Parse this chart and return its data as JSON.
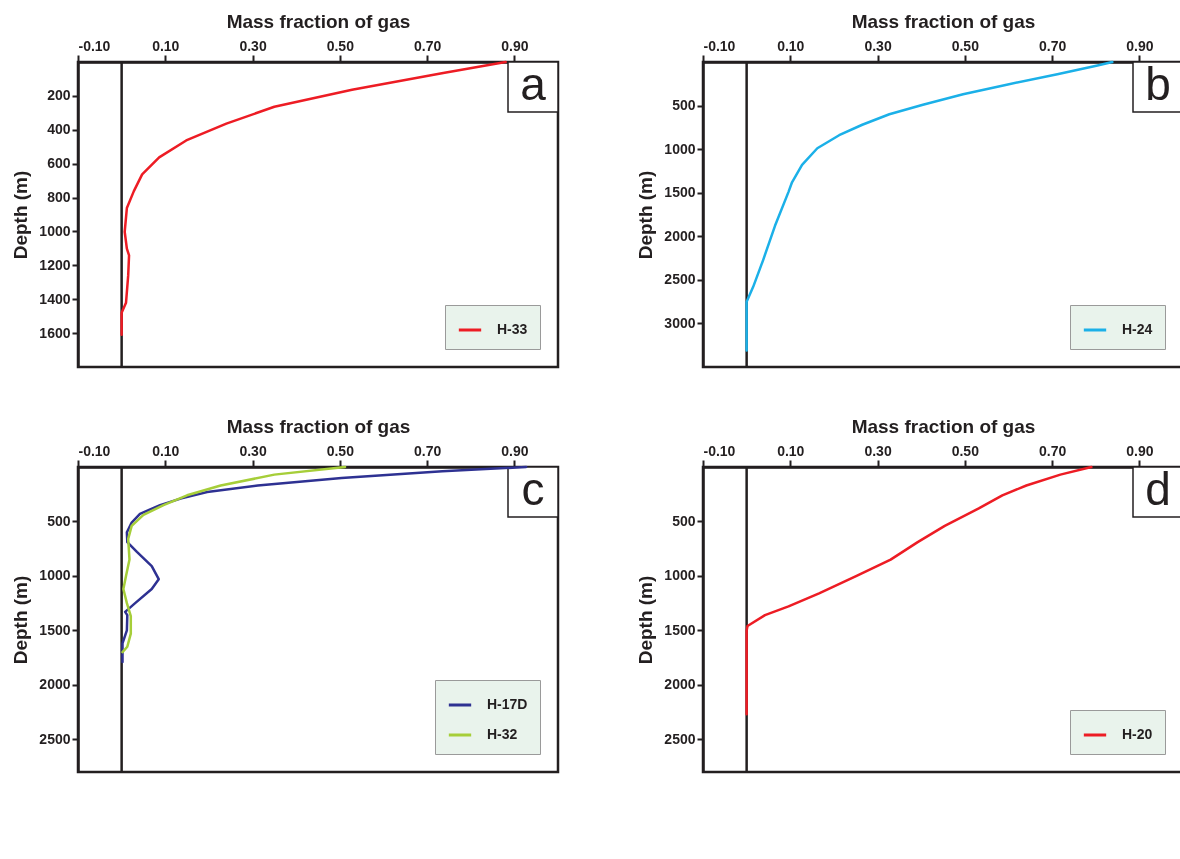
{
  "chart_data": [
    {
      "type": "line",
      "xlabel": "Mass fraction of gas",
      "ylabel": "Depth (m)",
      "annotations": [
        "a"
      ],
      "legend": "bottom right",
      "xlim": [
        -0.1,
        1.0
      ],
      "xticks": [
        {
          "value": -0.1,
          "label": "-0.10"
        },
        {
          "value": 0.1,
          "label": "0.10"
        },
        {
          "value": 0.3,
          "label": "0.30"
        },
        {
          "value": 0.5,
          "label": "0.50"
        },
        {
          "value": 0.7,
          "label": "0.70"
        },
        {
          "value": 0.9,
          "label": "0.90"
        }
      ],
      "ylim": [
        1800,
        0
      ],
      "yticks": [
        200,
        400,
        600,
        800,
        1000,
        1200,
        1400,
        1600
      ],
      "ref_lines": [
        {
          "axis": "x",
          "value": 0,
          "color": "#231f20"
        }
      ],
      "series": [
        {
          "name": "H-33",
          "color": "#ed1c24",
          "x": [
            0.88,
            0.737,
            0.528,
            0.35,
            0.24,
            0.148,
            0.086,
            0.047,
            0.028,
            0.012,
            0.007,
            0.012,
            0.017,
            0.015,
            0.01,
            0,
            0
          ],
          "values": [
            0,
            65,
            164,
            264,
            364,
            463,
            563,
            663,
            762,
            862,
            1002,
            1101,
            1141,
            1261,
            1421,
            1480,
            1610
          ]
        }
      ]
    },
    {
      "type": "line",
      "xlabel": "Mass fraction of gas",
      "ylabel": "Depth (m)",
      "annotations": [
        "b"
      ],
      "legend": "bottom right",
      "xlim": [
        -0.1,
        1.0
      ],
      "xticks": [
        {
          "value": -0.1,
          "label": "-0.10"
        },
        {
          "value": 0.1,
          "label": "0.10"
        },
        {
          "value": 0.3,
          "label": "0.30"
        },
        {
          "value": 0.5,
          "label": "0.50"
        },
        {
          "value": 0.7,
          "label": "0.70"
        },
        {
          "value": 0.9,
          "label": "0.90"
        }
      ],
      "ylim": [
        3500,
        0
      ],
      "yticks": [
        500,
        1000,
        1500,
        2000,
        2500,
        3000
      ],
      "ref_lines": [
        {
          "axis": "x",
          "value": 0,
          "color": "#231f20"
        }
      ],
      "series": [
        {
          "name": "H-24",
          "color": "#1bb0e8",
          "x": [
            0.838,
            0.804,
            0.712,
            0.596,
            0.496,
            0.404,
            0.327,
            0.265,
            0.212,
            0.162,
            0.127,
            0.104,
            0.096,
            0.065,
            0.038,
            0.015,
            0,
            0
          ],
          "values": [
            0,
            40,
            140,
            260,
            370,
            490,
            600,
            720,
            840,
            990,
            1180,
            1380,
            1490,
            1880,
            2270,
            2580,
            2750,
            3310
          ]
        }
      ]
    },
    {
      "type": "line",
      "xlabel": "Mass fraction of gas",
      "ylabel": "Depth (m)",
      "annotations": [
        "c"
      ],
      "legend": "bottom right",
      "xlim": [
        -0.1,
        1.0
      ],
      "xticks": [
        {
          "value": -0.1,
          "label": "-0.10"
        },
        {
          "value": 0.1,
          "label": "0.10"
        },
        {
          "value": 0.3,
          "label": "0.30"
        },
        {
          "value": 0.5,
          "label": "0.50"
        },
        {
          "value": 0.7,
          "label": "0.70"
        },
        {
          "value": 0.9,
          "label": "0.90"
        }
      ],
      "ylim": [
        2800,
        0
      ],
      "yticks": [
        500,
        1000,
        1500,
        2000,
        2500
      ],
      "ref_lines": [
        {
          "axis": "x",
          "value": 0,
          "color": "#231f20"
        }
      ],
      "series": [
        {
          "name": "H-17D",
          "color": "#2e3192",
          "x": [
            0.927,
            0.735,
            0.504,
            0.312,
            0.196,
            0.135,
            0.088,
            0.042,
            0.023,
            0.012,
            0.013,
            0.035,
            0.069,
            0.085,
            0.069,
            0.031,
            0.008,
            0.013,
            0.012,
            0.002,
            0.002
          ],
          "values": [
            0,
            40,
            100,
            170,
            230,
            290,
            350,
            430,
            510,
            600,
            690,
            780,
            910,
            1030,
            1120,
            1250,
            1330,
            1360,
            1500,
            1620,
            1790
          ]
        },
        {
          "name": "H-32",
          "color": "#a6ce39",
          "x": [
            0.512,
            0.35,
            0.227,
            0.15,
            0.096,
            0.05,
            0.023,
            0.015,
            0.018,
            0.01,
            0.004,
            0.012,
            0.021,
            0.021,
            0.013,
            0.002
          ],
          "values": [
            0,
            70,
            170,
            260,
            350,
            440,
            540,
            660,
            850,
            1000,
            1120,
            1250,
            1370,
            1530,
            1650,
            1700
          ]
        }
      ]
    },
    {
      "type": "line",
      "xlabel": "Mass fraction of gas",
      "ylabel": "Depth (m)",
      "annotations": [
        "d"
      ],
      "legend": "bottom right",
      "xlim": [
        -0.1,
        1.0
      ],
      "xticks": [
        {
          "value": -0.1,
          "label": "-0.10"
        },
        {
          "value": 0.1,
          "label": "0.10"
        },
        {
          "value": 0.3,
          "label": "0.30"
        },
        {
          "value": 0.5,
          "label": "0.50"
        },
        {
          "value": 0.7,
          "label": "0.70"
        },
        {
          "value": 0.9,
          "label": "0.90"
        }
      ],
      "ylim": [
        2800,
        0
      ],
      "yticks": [
        500,
        1000,
        1500,
        2000,
        2500
      ],
      "ref_lines": [
        {
          "axis": "x",
          "value": 0,
          "color": "#231f20"
        }
      ],
      "series": [
        {
          "name": "H-20",
          "color": "#ed1c24",
          "x": [
            0.79,
            0.719,
            0.641,
            0.586,
            0.532,
            0.454,
            0.392,
            0.33,
            0.252,
            0.166,
            0.096,
            0.042,
            0.002,
            0,
            0
          ],
          "values": [
            0,
            70,
            170,
            260,
            380,
            540,
            690,
            850,
            1000,
            1160,
            1280,
            1360,
            1460,
            1500,
            2270
          ]
        }
      ]
    }
  ]
}
